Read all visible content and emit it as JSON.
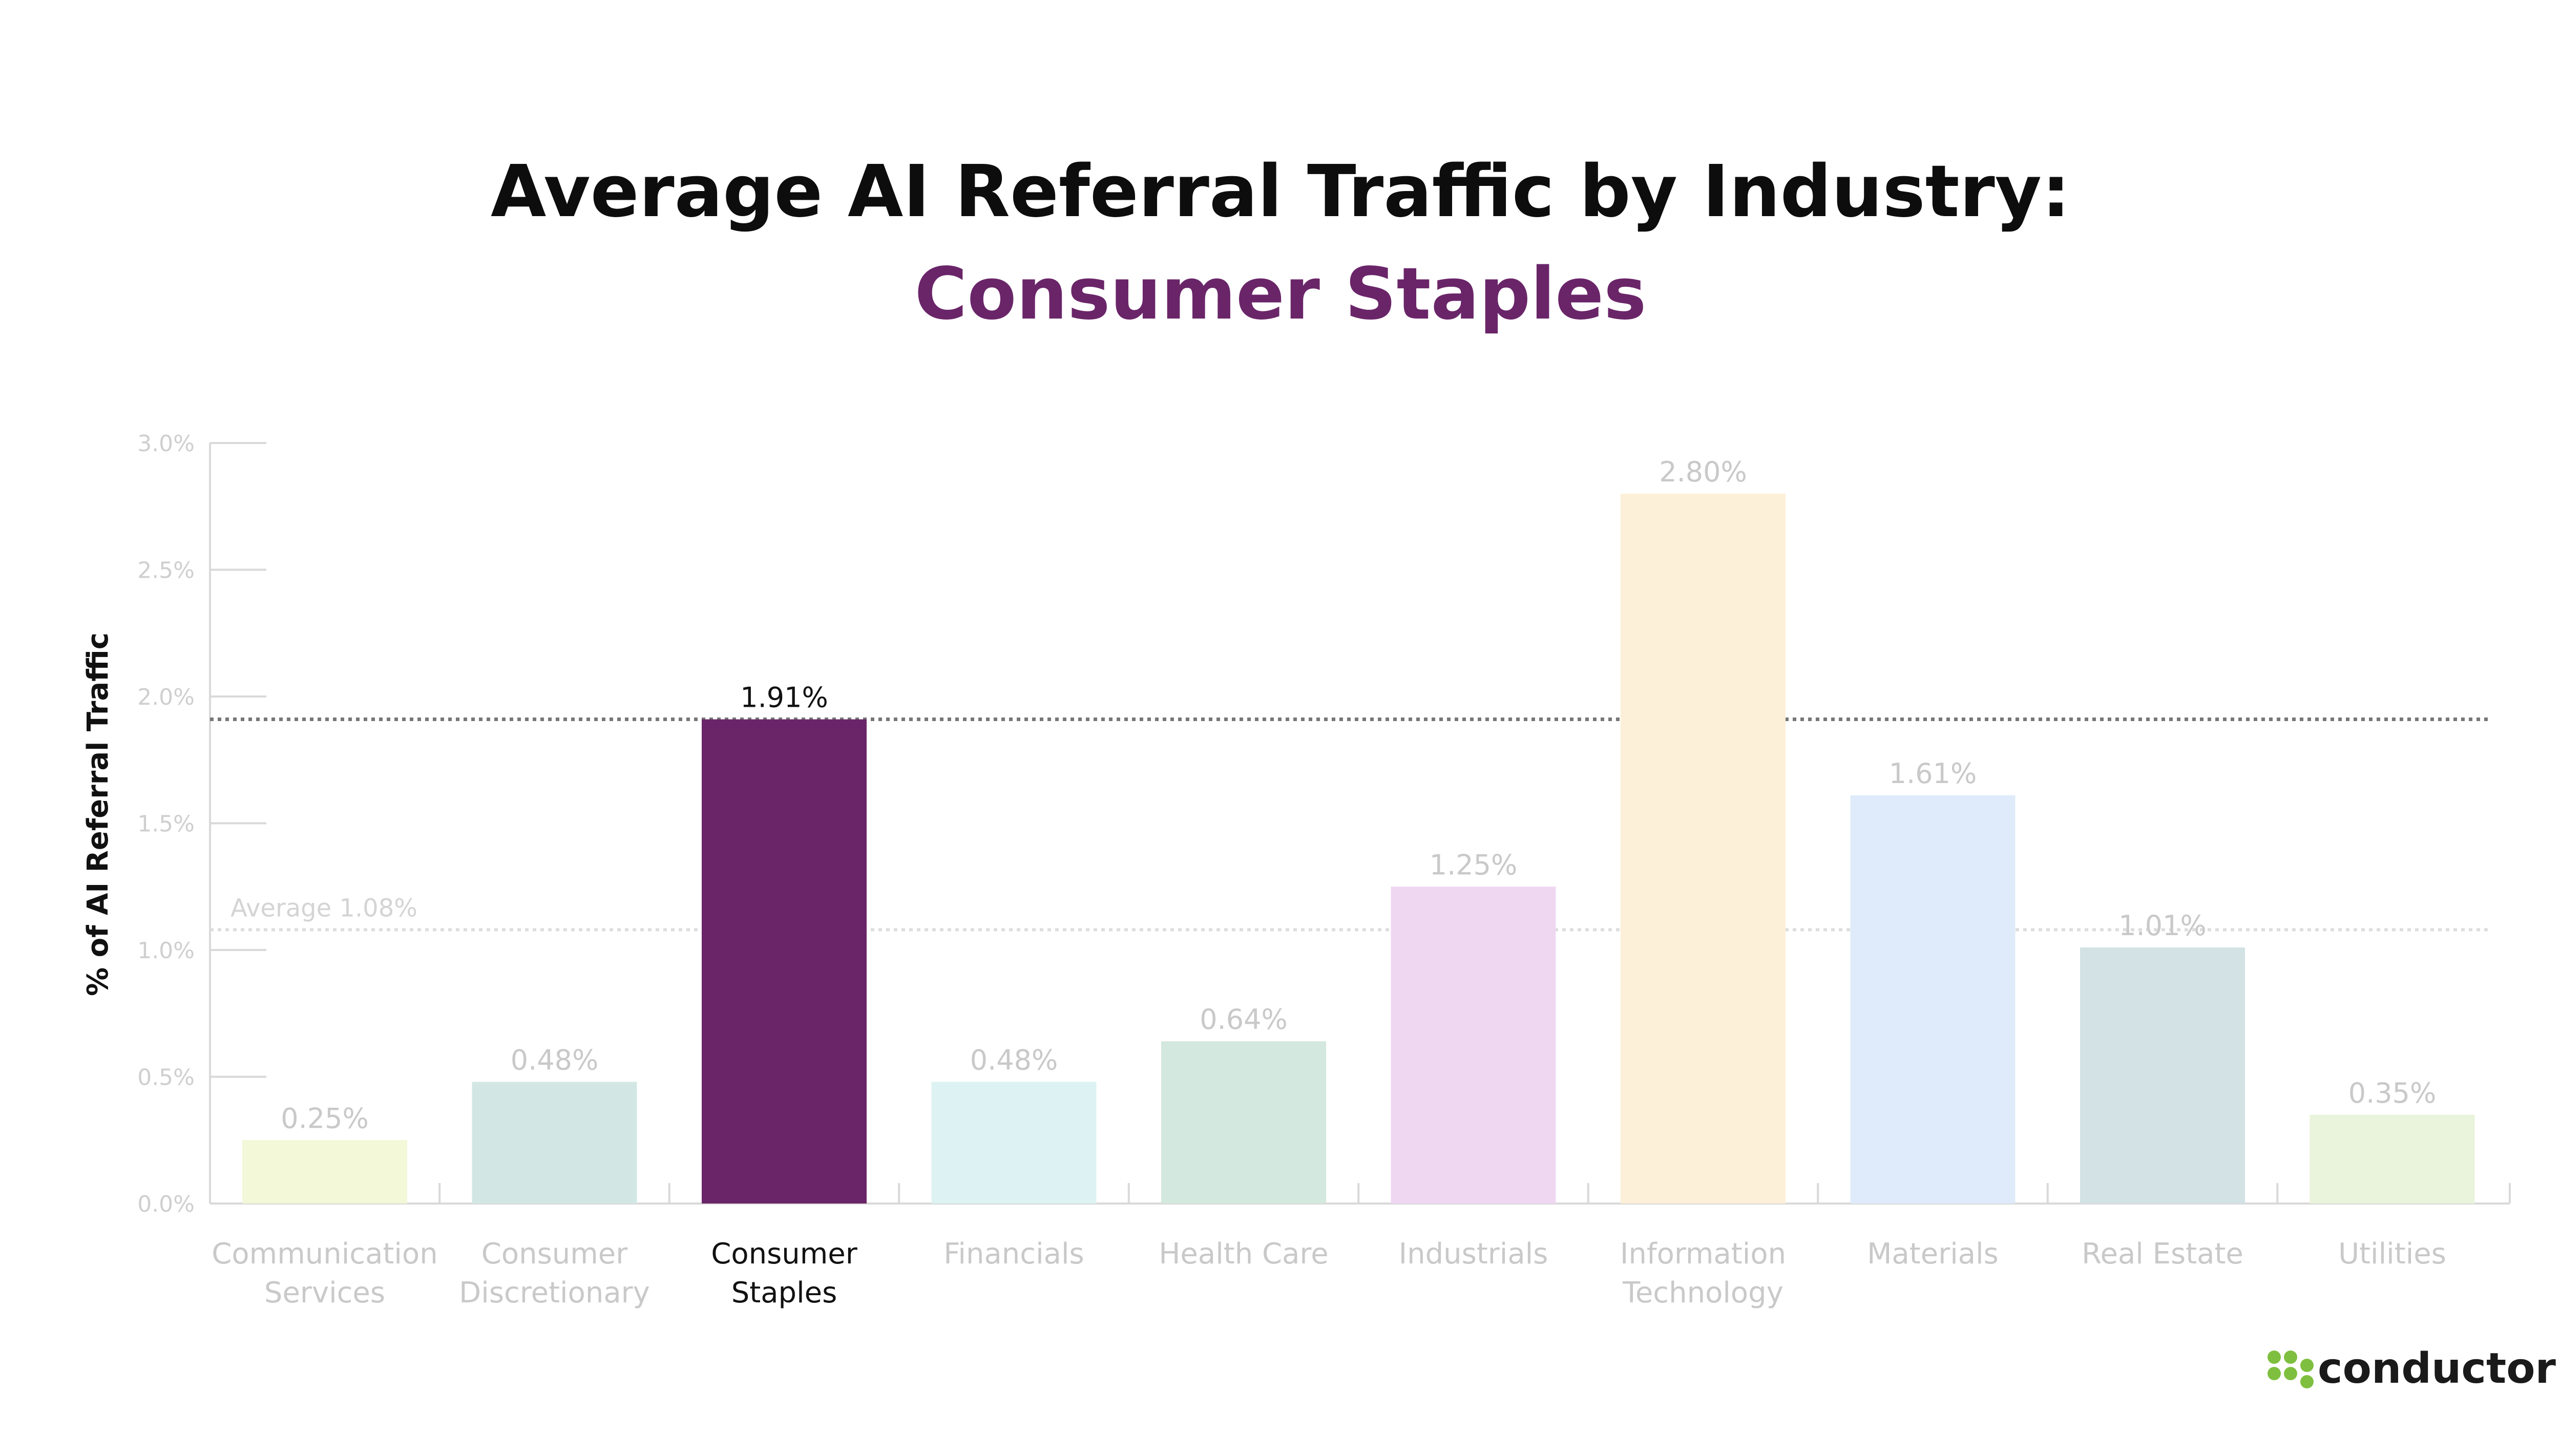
{
  "chart_data": {
    "type": "bar",
    "title": "Average AI Referral Traffic by Industry:",
    "subtitle": "Consumer Staples",
    "ylabel": "% of AI Referral Traffic",
    "ylim": [
      0,
      3.0
    ],
    "yticks": [
      "0.0%",
      "0.5%",
      "1.0%",
      "1.5%",
      "2.0%",
      "2.5%",
      "3.0%"
    ],
    "categories": [
      [
        "Communication",
        "Services"
      ],
      [
        "Consumer",
        "Discretionary"
      ],
      [
        "Consumer",
        "Staples"
      ],
      [
        "Financials"
      ],
      [
        "Health Care"
      ],
      [
        "Industrials"
      ],
      [
        "Information",
        "Technology"
      ],
      [
        "Materials"
      ],
      [
        "Real Estate"
      ],
      [
        "Utilities"
      ]
    ],
    "values": [
      0.25,
      0.48,
      1.91,
      0.48,
      0.64,
      1.25,
      2.8,
      1.61,
      1.01,
      0.35
    ],
    "value_labels": [
      "0.25%",
      "0.48%",
      "1.91%",
      "0.48%",
      "0.64%",
      "1.25%",
      "2.80%",
      "1.61%",
      "1.01%",
      "0.35%"
    ],
    "bar_colors": [
      "#f2f8d8",
      "#d2e7e4",
      "#6a2569",
      "#ddf2f3",
      "#d3e8de",
      "#efd7f2",
      "#fdf0d8",
      "#dfebfa",
      "#d2e2e5",
      "#eaf3db"
    ],
    "highlight_index": 2,
    "highlight_color": "#6a2569",
    "reference_line": {
      "value": 1.91
    },
    "average_line": {
      "value": 1.08,
      "label": "Average 1.08%"
    },
    "grid": false
  },
  "brand": {
    "name": "conductor",
    "color": "#7fbf3f"
  }
}
